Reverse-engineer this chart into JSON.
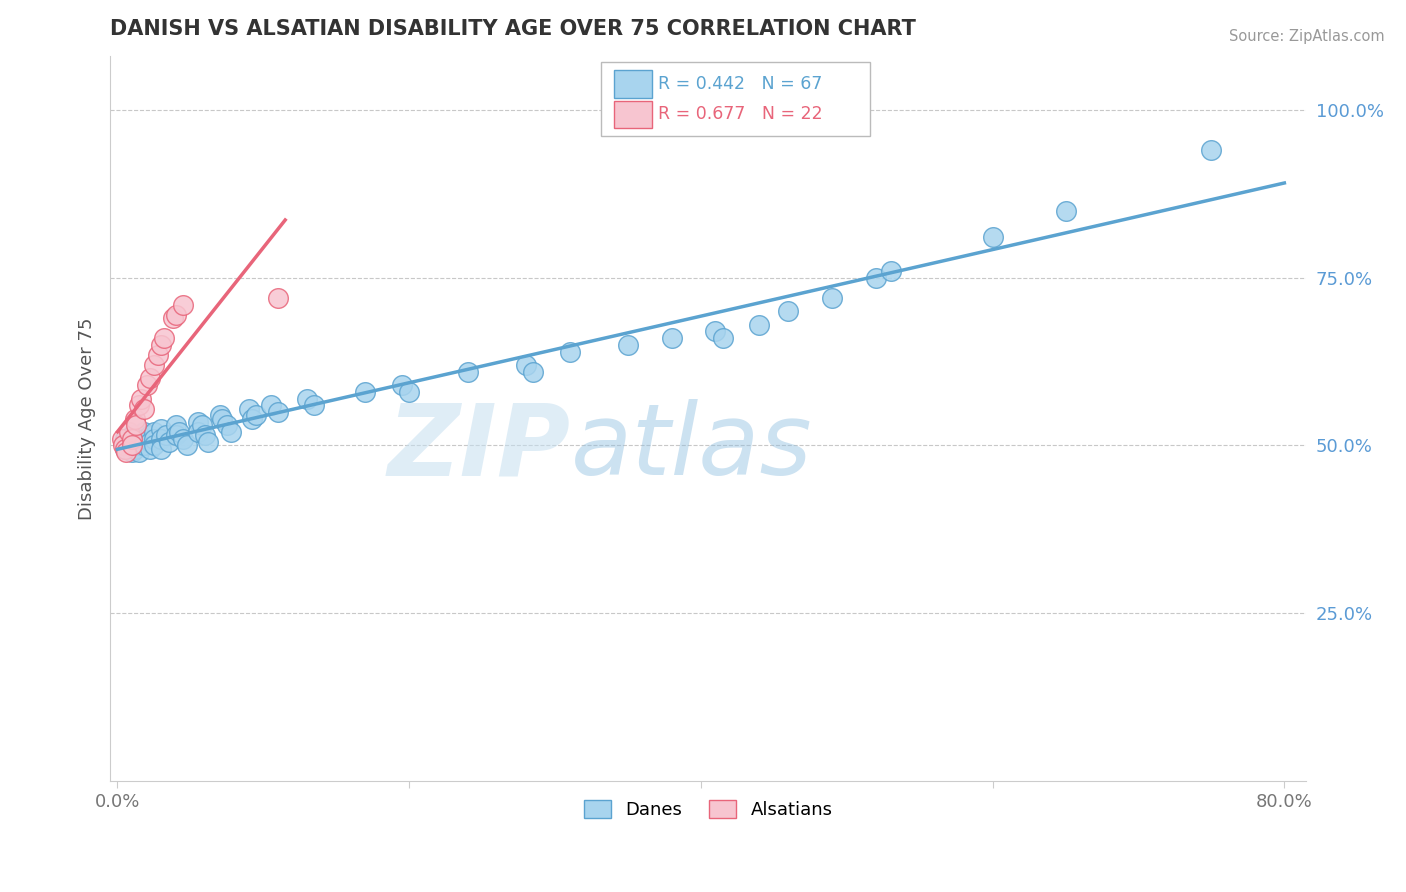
{
  "title": "DANISH VS ALSATIAN DISABILITY AGE OVER 75 CORRELATION CHART",
  "source": "Source: ZipAtlas.com",
  "ylabel": "Disability Age Over 75",
  "xlim": [
    0.0,
    0.8
  ],
  "ylim": [
    0.0,
    1.05
  ],
  "x_ticks": [
    0.0,
    0.2,
    0.4,
    0.6,
    0.8
  ],
  "x_tick_labels": [
    "0.0%",
    "",
    "",
    "",
    "80.0%"
  ],
  "y_ticks": [
    0.25,
    0.5,
    0.75,
    1.0
  ],
  "y_tick_labels": [
    "25.0%",
    "50.0%",
    "75.0%",
    "100.0%"
  ],
  "danes_R": 0.442,
  "danes_N": 67,
  "alsatians_R": 0.677,
  "alsatians_N": 22,
  "danes_color": "#a8d4ee",
  "danes_edge_color": "#5ba3d0",
  "alsatians_color": "#f7c5d0",
  "alsatians_edge_color": "#e8657a",
  "danes_x": [
    0.005,
    0.005,
    0.008,
    0.01,
    0.01,
    0.01,
    0.012,
    0.012,
    0.012,
    0.015,
    0.015,
    0.015,
    0.015,
    0.018,
    0.018,
    0.018,
    0.022,
    0.022,
    0.022,
    0.025,
    0.025,
    0.025,
    0.03,
    0.03,
    0.03,
    0.033,
    0.035,
    0.04,
    0.04,
    0.042,
    0.045,
    0.048,
    0.055,
    0.055,
    0.058,
    0.06,
    0.062,
    0.07,
    0.072,
    0.075,
    0.078,
    0.09,
    0.092,
    0.095,
    0.105,
    0.11,
    0.13,
    0.135,
    0.17,
    0.195,
    0.2,
    0.24,
    0.28,
    0.285,
    0.31,
    0.35,
    0.38,
    0.41,
    0.415,
    0.44,
    0.46,
    0.49,
    0.52,
    0.53,
    0.6,
    0.65,
    0.75
  ],
  "danes_y": [
    0.51,
    0.495,
    0.505,
    0.515,
    0.5,
    0.49,
    0.515,
    0.505,
    0.495,
    0.515,
    0.51,
    0.5,
    0.49,
    0.52,
    0.51,
    0.5,
    0.515,
    0.505,
    0.495,
    0.52,
    0.51,
    0.5,
    0.525,
    0.51,
    0.495,
    0.515,
    0.505,
    0.53,
    0.515,
    0.52,
    0.51,
    0.5,
    0.535,
    0.52,
    0.53,
    0.515,
    0.505,
    0.545,
    0.54,
    0.53,
    0.52,
    0.555,
    0.54,
    0.545,
    0.56,
    0.55,
    0.57,
    0.56,
    0.58,
    0.59,
    0.58,
    0.61,
    0.62,
    0.61,
    0.64,
    0.65,
    0.66,
    0.67,
    0.66,
    0.68,
    0.7,
    0.72,
    0.75,
    0.76,
    0.81,
    0.85,
    0.94
  ],
  "alsatians_x": [
    0.003,
    0.004,
    0.005,
    0.006,
    0.008,
    0.01,
    0.01,
    0.012,
    0.013,
    0.015,
    0.016,
    0.018,
    0.02,
    0.022,
    0.025,
    0.028,
    0.03,
    0.032,
    0.038,
    0.04,
    0.045,
    0.11
  ],
  "alsatians_y": [
    0.51,
    0.5,
    0.495,
    0.49,
    0.52,
    0.51,
    0.5,
    0.54,
    0.53,
    0.56,
    0.57,
    0.555,
    0.59,
    0.6,
    0.62,
    0.635,
    0.65,
    0.66,
    0.69,
    0.695,
    0.71,
    0.72
  ],
  "watermark_zip": "ZIP",
  "watermark_atlas": "atlas",
  "grid_color": "#c8c8c8",
  "background_color": "#ffffff",
  "title_color": "#333333",
  "title_fontsize": 15,
  "axis_label_color": "#555555",
  "y_tick_color": "#5b9bd5",
  "x_tick_color": "#777777",
  "source_color": "#999999"
}
